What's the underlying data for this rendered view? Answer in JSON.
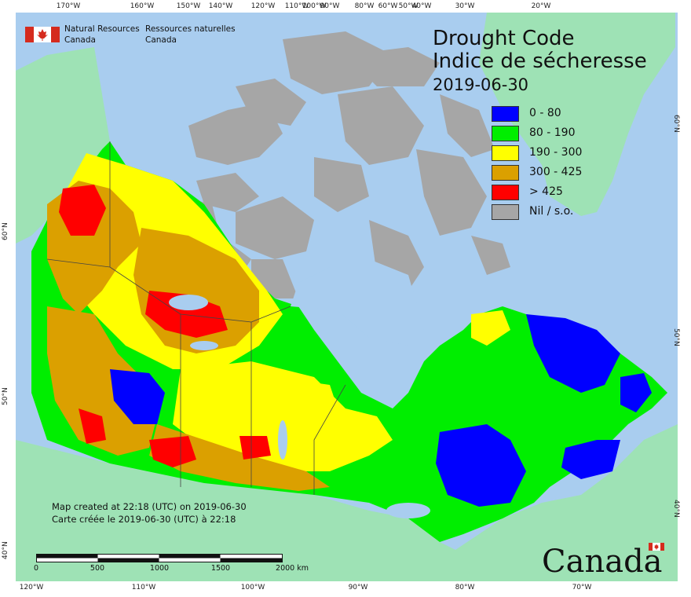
{
  "title": {
    "en": "Drought Code",
    "fr": "Indice de sécheresse",
    "date": "2019-06-30"
  },
  "legend": [
    {
      "label": "0 - 80",
      "color": "#0000ff"
    },
    {
      "label": "80 - 190",
      "color": "#00ee00"
    },
    {
      "label": "190 - 300",
      "color": "#ffff00"
    },
    {
      "label": "300 - 425",
      "color": "#dba000"
    },
    {
      "label": "> 425",
      "color": "#ff0000"
    },
    {
      "label": "Nil / s.o.",
      "color": "#a6a6a6"
    }
  ],
  "agency": {
    "en_line1": "Natural Resources",
    "en_line2": "Canada",
    "fr_line1": "Ressources naturelles",
    "fr_line2": "Canada"
  },
  "credit": {
    "en": "Map created at 22:18 (UTC) on 2019-06-30",
    "fr": "Carte créée le 2019-06-30 (UTC) à 22:18"
  },
  "scale": {
    "labels": [
      "0",
      "500",
      "1000",
      "1500",
      "2000  km"
    ]
  },
  "wordmark": "Canada",
  "graticule": {
    "top": [
      "170°W",
      "160°W",
      "150°W",
      "140°W",
      "120°W",
      "110°W",
      "100°W",
      "90°W",
      "80°W",
      "60°W",
      "50°W",
      "40°W",
      "30°W",
      "20°W"
    ],
    "bottom": [
      "120°W",
      "110°W",
      "100°W",
      "90°W",
      "80°W",
      "70°W"
    ],
    "left": [
      "60°N",
      "50°N",
      "40°N"
    ],
    "right": [
      "60°N",
      "50°N",
      "40°N"
    ]
  },
  "colors": {
    "ocean": "#a9cdef",
    "foreign_land": "#9ee2b5"
  }
}
